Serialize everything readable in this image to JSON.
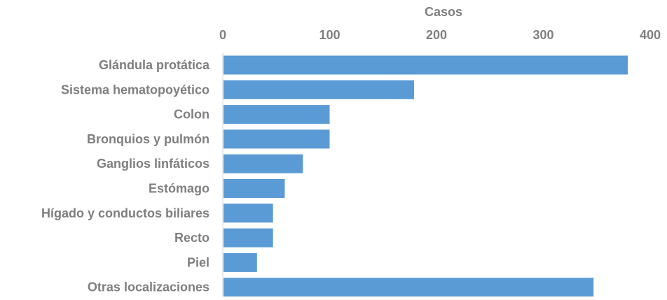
{
  "chart_data": {
    "type": "bar",
    "orientation": "horizontal",
    "xlabel": "Casos",
    "xlabel_position": "top",
    "xlim": [
      0,
      400
    ],
    "x_ticks": [
      "0",
      "100",
      "200",
      "300",
      "400"
    ],
    "categories": [
      "Glándula protática",
      "Sistema hematopoyético",
      "Colon",
      "Bronquios y pulmón",
      "Ganglios linfáticos",
      "Estómago",
      "Hígado y conductos biliares",
      "Recto",
      "Piel",
      "Otras localizaciones"
    ],
    "values": [
      379,
      179,
      100,
      100,
      75,
      58,
      47,
      47,
      32,
      347
    ],
    "grid": false,
    "bar_color": "#5b9bd5",
    "text_color": "#7f7f7f",
    "axis_color": "#d9d9d9"
  }
}
